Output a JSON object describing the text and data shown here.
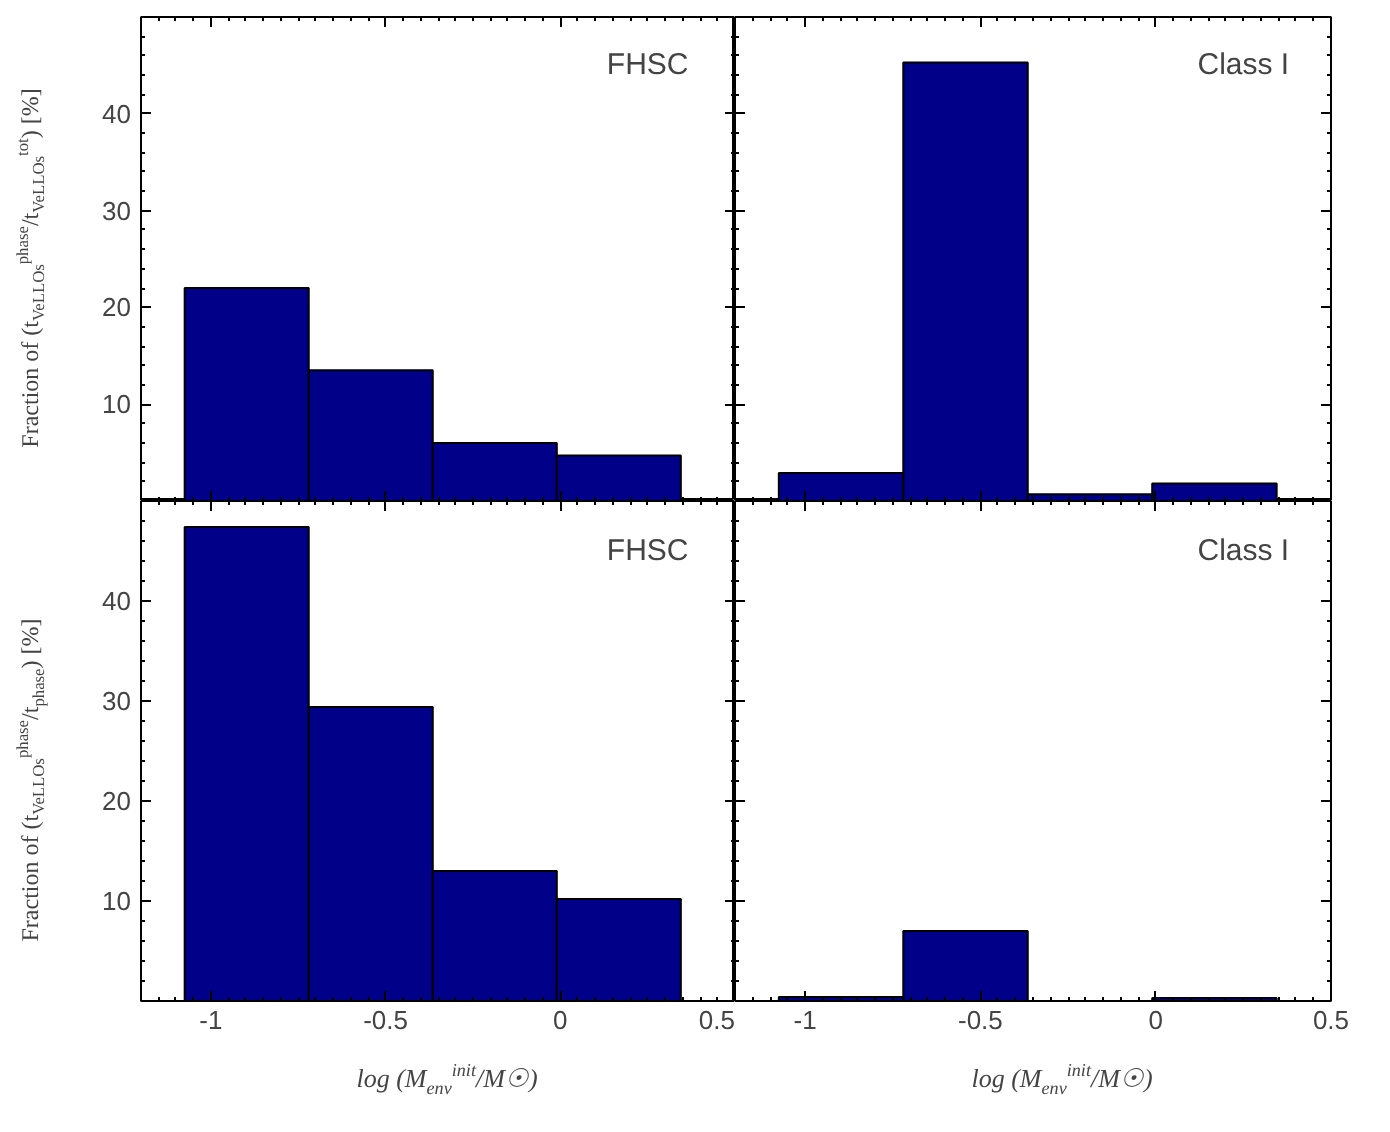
{
  "chart_data": [
    {
      "type": "histogram",
      "annotations": [
        "FHSC"
      ],
      "ylabel": "Fraction of (t$_{VeLLOs}$$^{phase}$/t$_{VeLLOs}$$^{tot}$) [%]",
      "bins": [
        -1.075,
        -0.72,
        -0.365,
        -0.01,
        0.345
      ],
      "values": [
        22.0,
        13.5,
        6.0,
        4.7
      ],
      "color": "#000088",
      "xlim": [
        -1.2,
        0.5
      ],
      "xticks": [
        -1,
        -0.5,
        0,
        0.5
      ],
      "ylim": [
        0,
        50
      ],
      "yticks": [
        10,
        20,
        30,
        40
      ],
      "tick_labels": "y",
      "grid": false
    },
    {
      "type": "histogram",
      "annotations": [
        "Class I"
      ],
      "bins": [
        -1.075,
        -0.72,
        -0.365,
        -0.01,
        0.345
      ],
      "values": [
        2.9,
        45.3,
        0.7,
        1.8
      ],
      "color": "#000088",
      "xlim": [
        -1.2,
        0.5
      ],
      "xticks": [
        -1,
        -0.5,
        0,
        0.5
      ],
      "ylim": [
        0,
        50
      ],
      "yticks": [
        10,
        20,
        30,
        40
      ],
      "tick_labels": false,
      "grid": false
    },
    {
      "type": "histogram",
      "annotations": [
        "FHSC"
      ],
      "ylabel": "Fraction of (t$_{VeLLOs}$$^{phase}$/t$_{phase}$) [%]",
      "xlabel": "log (M$_{env}$$^{init}$/M☉)",
      "bins": [
        -1.075,
        -0.72,
        -0.365,
        -0.01,
        0.345
      ],
      "values": [
        47.4,
        29.4,
        13.0,
        10.2
      ],
      "color": "#000088",
      "xlim": [
        -1.2,
        0.5
      ],
      "xticks": [
        -1,
        -0.5,
        0,
        0.5
      ],
      "ylim": [
        0,
        50
      ],
      "yticks": [
        10,
        20,
        30,
        40
      ],
      "grid": false
    },
    {
      "type": "histogram",
      "annotations": [
        "Class I"
      ],
      "xlabel": "log (M$_{env}$$^{init}$/M☉)",
      "bins": [
        -1.075,
        -0.72,
        -0.365,
        -0.01,
        0.345
      ],
      "values": [
        0.4,
        7.0,
        null,
        0.3
      ],
      "color": "#000088",
      "xlim": [
        -1.2,
        0.5
      ],
      "xticks": [
        -1,
        -0.5,
        0,
        0.5
      ],
      "ylim": [
        0,
        50
      ],
      "yticks": [
        10,
        20,
        30,
        40
      ],
      "tick_labels": "x",
      "grid": false
    }
  ]
}
